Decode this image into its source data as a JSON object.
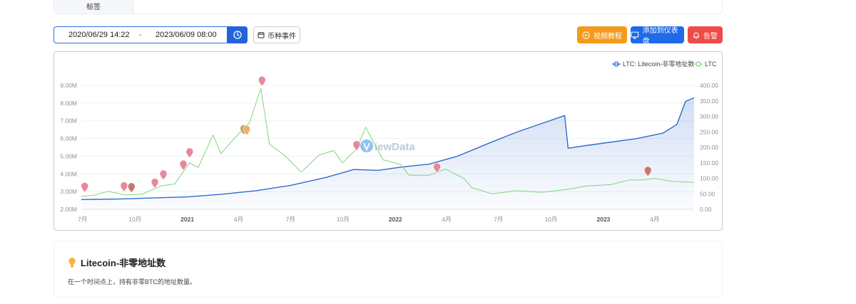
{
  "tag_strip": {
    "label": "标签"
  },
  "toolbar": {
    "date_start": "2020/06/29 14:22",
    "date_separator": "-",
    "date_end": "2023/06/09 08:00",
    "event_label": "币种事件",
    "video_label": "视频教程",
    "dashboard_label": "添加到仪表盘",
    "alert_label": "告警"
  },
  "colors": {
    "primary_blue": "#2463dc",
    "orange": "#f39a1c",
    "red": "#ef4b4b",
    "series_addresses": "#2f6bcf",
    "series_price": "#7ed67a"
  },
  "icons": {
    "clock": "clock-icon",
    "calendar": "calendar-icon",
    "video": "play-circle-icon",
    "dashboard": "monitor-icon",
    "alert": "bell-icon",
    "info": "lightbulb-icon"
  },
  "chart_data": {
    "type": "line",
    "watermark": "ViewData",
    "legend_placement": "top-right",
    "x_tick_labels": [
      "7月",
      "10月",
      "2021",
      "4月",
      "7月",
      "10月",
      "2022",
      "4月",
      "7月",
      "10月",
      "2023",
      "4月"
    ],
    "x_tick_dates": [
      "2020-07-01",
      "2020-10-01",
      "2021-01-01",
      "2021-04-01",
      "2021-07-01",
      "2021-10-01",
      "2022-01-01",
      "2022-04-01",
      "2022-07-01",
      "2022-10-01",
      "2023-01-01",
      "2023-04-01"
    ],
    "x_range": [
      "2020-06-29",
      "2023-06-09"
    ],
    "y_left": {
      "range": [
        2000000,
        9000000
      ],
      "tick_labels": [
        "2.00M",
        "3.00M",
        "4.00M",
        "5.00M",
        "6.00M",
        "7.00M",
        "8.00M",
        "9.00M"
      ],
      "ticks": [
        2000000,
        3000000,
        4000000,
        5000000,
        6000000,
        7000000,
        8000000,
        9000000
      ]
    },
    "y_right": {
      "range": [
        0,
        400
      ],
      "tick_labels": [
        "0.00",
        "50.00",
        "100.00",
        "150.00",
        "200.00",
        "250.00",
        "300.00",
        "350.00",
        "400.00"
      ],
      "ticks": [
        0,
        50,
        100,
        150,
        200,
        250,
        300,
        350,
        400
      ]
    },
    "series": [
      {
        "name": "LTC: Litecoin-非零地址数",
        "axis": "left",
        "color": "#2f6bcf",
        "area": true,
        "points": [
          [
            "2020-06-29",
            2550000
          ],
          [
            "2020-09-01",
            2580000
          ],
          [
            "2020-11-01",
            2640000
          ],
          [
            "2021-01-01",
            2700000
          ],
          [
            "2021-03-01",
            2850000
          ],
          [
            "2021-05-01",
            3050000
          ],
          [
            "2021-07-01",
            3350000
          ],
          [
            "2021-09-01",
            3800000
          ],
          [
            "2021-10-20",
            4250000
          ],
          [
            "2021-12-01",
            4200000
          ],
          [
            "2022-01-15",
            4400000
          ],
          [
            "2022-03-01",
            4550000
          ],
          [
            "2022-04-20",
            5000000
          ],
          [
            "2022-06-15",
            5750000
          ],
          [
            "2022-08-01",
            6350000
          ],
          [
            "2022-09-15",
            6850000
          ],
          [
            "2022-10-25",
            7300000
          ],
          [
            "2022-10-31",
            5450000
          ],
          [
            "2022-12-01",
            5600000
          ],
          [
            "2023-01-15",
            5800000
          ],
          [
            "2023-03-01",
            6000000
          ],
          [
            "2023-04-15",
            6300000
          ],
          [
            "2023-05-10",
            6800000
          ],
          [
            "2023-05-25",
            8100000
          ],
          [
            "2023-06-09",
            8300000
          ]
        ]
      },
      {
        "name": "LTC",
        "axis": "right",
        "color": "#7ed67a",
        "area": false,
        "points": [
          [
            "2020-06-29",
            42
          ],
          [
            "2020-07-20",
            45
          ],
          [
            "2020-08-15",
            58
          ],
          [
            "2020-09-15",
            46
          ],
          [
            "2020-10-15",
            50
          ],
          [
            "2020-11-15",
            75
          ],
          [
            "2020-12-10",
            82
          ],
          [
            "2021-01-05",
            150
          ],
          [
            "2021-01-20",
            135
          ],
          [
            "2021-02-15",
            240
          ],
          [
            "2021-03-01",
            180
          ],
          [
            "2021-03-25",
            230
          ],
          [
            "2021-04-20",
            280
          ],
          [
            "2021-05-10",
            390
          ],
          [
            "2021-05-25",
            210
          ],
          [
            "2021-06-20",
            175
          ],
          [
            "2021-07-20",
            120
          ],
          [
            "2021-08-20",
            175
          ],
          [
            "2021-09-15",
            190
          ],
          [
            "2021-09-30",
            150
          ],
          [
            "2021-10-25",
            195
          ],
          [
            "2021-11-10",
            265
          ],
          [
            "2021-11-20",
            230
          ],
          [
            "2021-12-10",
            160
          ],
          [
            "2022-01-10",
            145
          ],
          [
            "2022-01-25",
            110
          ],
          [
            "2022-03-01",
            110
          ],
          [
            "2022-03-30",
            130
          ],
          [
            "2022-05-01",
            100
          ],
          [
            "2022-05-15",
            70
          ],
          [
            "2022-06-20",
            50
          ],
          [
            "2022-08-01",
            60
          ],
          [
            "2022-09-15",
            55
          ],
          [
            "2022-11-01",
            65
          ],
          [
            "2022-12-01",
            75
          ],
          [
            "2023-01-15",
            80
          ],
          [
            "2023-02-15",
            95
          ],
          [
            "2023-03-10",
            95
          ],
          [
            "2023-04-01",
            100
          ],
          [
            "2023-05-01",
            90
          ],
          [
            "2023-06-09",
            87
          ]
        ]
      }
    ],
    "event_markers": [
      {
        "date": "2020-07-05",
        "value": 3200000,
        "color": "#e8889c"
      },
      {
        "date": "2020-09-12",
        "value": 3230000,
        "color": "#e8889c"
      },
      {
        "date": "2020-09-25",
        "value": 3180000,
        "color": "#c8786a"
      },
      {
        "date": "2020-11-05",
        "value": 3430000,
        "color": "#e8889c"
      },
      {
        "date": "2020-11-20",
        "value": 3900000,
        "color": "#e8889c"
      },
      {
        "date": "2020-12-25",
        "value": 4450000,
        "color": "#e8889c"
      },
      {
        "date": "2021-01-05",
        "value": 5150000,
        "color": "#e8889c"
      },
      {
        "date": "2021-04-10",
        "value": 6450000,
        "color": "#b8a060"
      },
      {
        "date": "2021-04-15",
        "value": 6420000,
        "color": "#f0b070"
      },
      {
        "date": "2021-05-12",
        "value": 9200000,
        "color": "#e8889c"
      },
      {
        "date": "2021-10-25",
        "value": 5550000,
        "color": "#e8889c"
      },
      {
        "date": "2022-03-15",
        "value": 4300000,
        "color": "#e8889c"
      },
      {
        "date": "2023-03-20",
        "value": 4100000,
        "color": "#c8786a"
      }
    ]
  },
  "info": {
    "title": "Litecoin-非零地址数",
    "description": "在一个时间点上，持有非零BTC的地址数量。"
  }
}
